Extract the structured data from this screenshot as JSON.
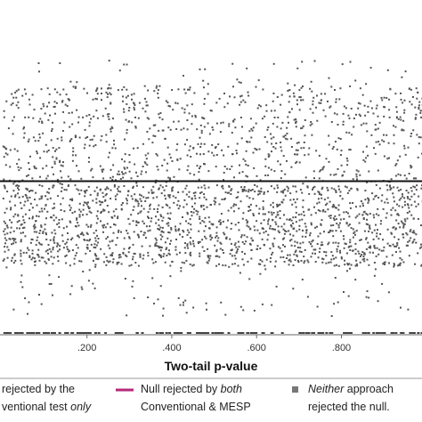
{
  "chart_data": {
    "type": "scatter",
    "xlabel": "Two-tail p-value",
    "ylabel": "",
    "xlim": [
      -0.005,
      0.99
    ],
    "ylim": [
      0,
      1
    ],
    "x_ticks": [
      {
        "value": 0.2,
        "label": ".200"
      },
      {
        "value": 0.4,
        "label": ".400"
      },
      {
        "value": 0.6,
        "label": ".600"
      },
      {
        "value": 0.8,
        "label": ".800"
      }
    ],
    "reference_line_y": 0.5,
    "grid": false,
    "legend_position": "bottom",
    "point_color": "#555555",
    "series": [
      {
        "name": "Neither approach rejected the null.",
        "color": "#777777",
        "description_parts": [
          "Neither",
          " approach",
          "rejected the null."
        ],
        "points_note": "dense uniform cloud of small square markers across x 0–1"
      },
      {
        "name": "Null rejected by both Conventional & MESP",
        "color": "#b5297a"
      },
      {
        "name": "Null rejected by the Conventional test only",
        "color": "#2a6db5"
      }
    ],
    "legend": [
      {
        "line1_a": "rejected by the",
        "line1_b": "",
        "line2_a": "ventional test ",
        "line2_b": "only",
        "color": "#2a6db5"
      },
      {
        "line1_a": "Null rejected by ",
        "line1_b": "both",
        "line2_a": "Conventional & MESP",
        "line2_b": "",
        "color": "#b5297a"
      },
      {
        "line1_a": "",
        "line1_b": "Neither",
        "line1_c": " approach",
        "line2_a": "rejected the null.",
        "line2_b": "",
        "color": "#777777"
      }
    ]
  }
}
